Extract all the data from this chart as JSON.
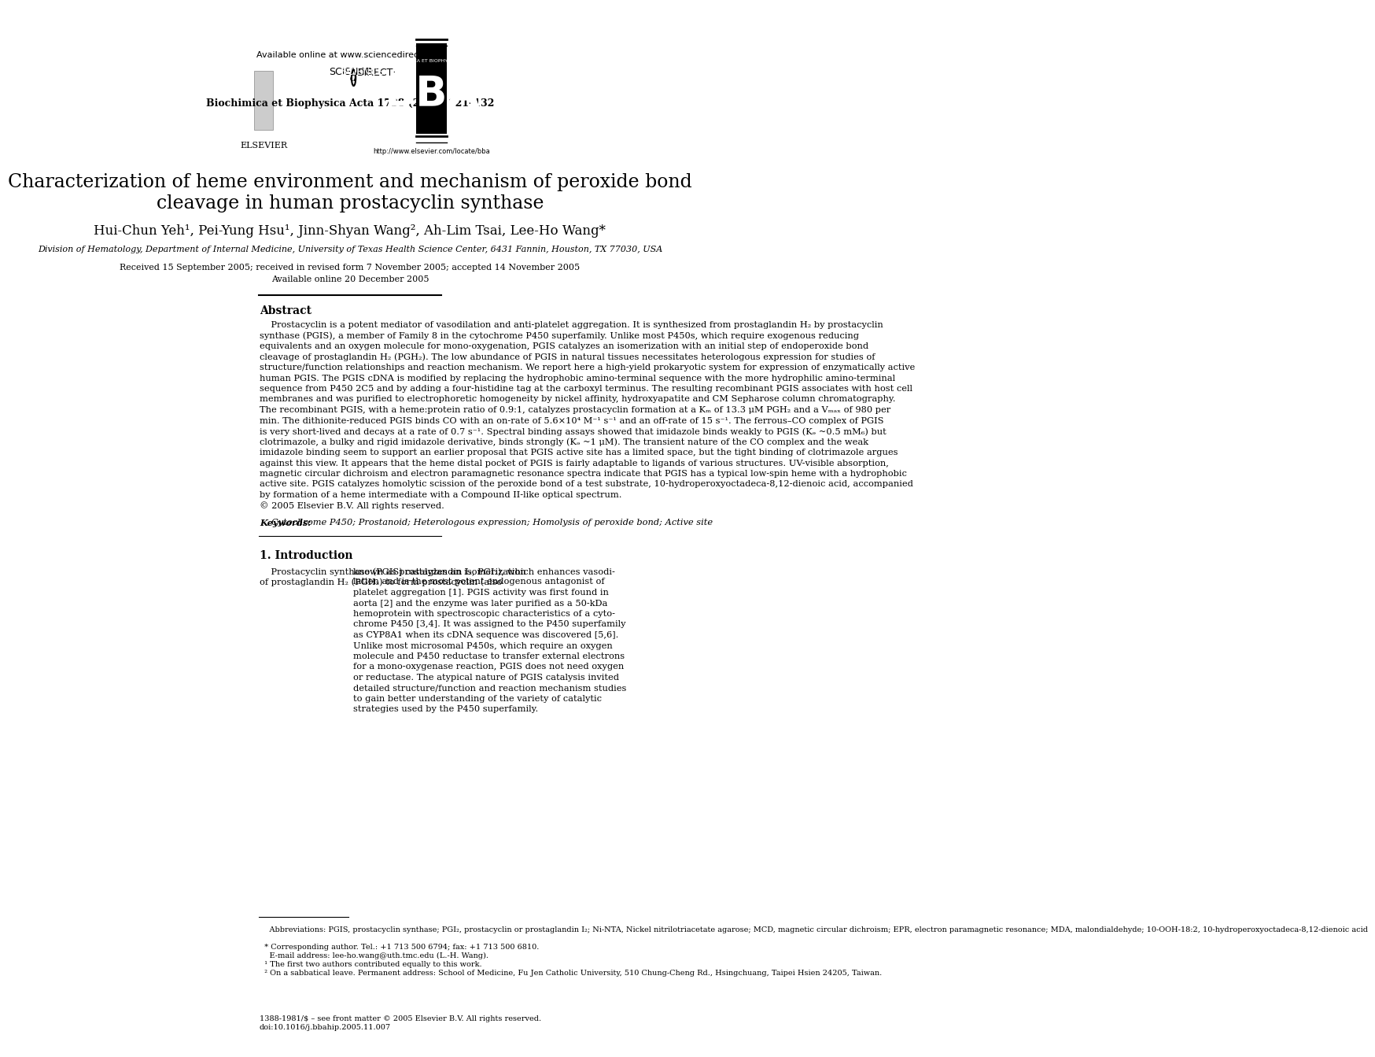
{
  "bg_color": "#ffffff",
  "header_line1": "Available online at www.sciencedirect.com",
  "journal_line": "Biochimica et Biophysica Acta 1738 (2005) 121–132",
  "paper_title_line1": "Characterization of heme environment and mechanism of peroxide bond",
  "paper_title_line2": "cleavage in human prostacyclin synthase",
  "authors": "Hui-Chun Yeh¹, Pei-Yung Hsu¹, Jinn-Shyan Wang², Ah-Lim Tsai, Lee-Ho Wang*",
  "affiliation": "Division of Hematology, Department of Internal Medicine, University of Texas Health Science Center, 6431 Fannin, Houston, TX 77030, USA",
  "received": "Received 15 September 2005; received in revised form 7 November 2005; accepted 14 November 2005",
  "available": "Available online 20 December 2005",
  "abstract_label": "Abstract",
  "abstract_text": "    Prostacyclin is a potent mediator of vasodilation and anti-platelet aggregation. It is synthesized from prostaglandin H₂ by prostacyclin synthase (PGIS), a member of Family 8 in the cytochrome P450 superfamily. Unlike most P450s, which require exogenous reducing equivalents and an oxygen molecule for mono-oxygenation, PGIS catalyzes an isomerization with an initial step of endoperoxide bond cleavage of prostaglandin H₂ (PGH₂). The low abundance of PGIS in natural tissues necessitates heterologous expression for studies of structure/function relationships and reaction mechanism. We report here a high-yield prokaryotic system for expression of enzymatically active human PGIS. The PGIS cDNA is modified by replacing the hydrophobic amino-terminal sequence with the more hydrophilic amino-terminal sequence from P450 2C5 and by adding a four-histidine tag at the carboxyl terminus. The resulting recombinant PGIS associates with host cell membranes and was purified to electrophoretic homogeneity by nickel affinity, hydroxyapatite and CM Sepharose column chromatography. The recombinant PGIS, with a heme:protein ratio of 0.9:1, catalyzes prostacyclin formation at a Kₘ of 13.3 μM PGH₂ and a Vₘₐₓ of 980 per min. The dithionite-reduced PGIS binds CO with an on-rate of 5.6×10⁴ M⁻¹ s⁻¹ and an off-rate of 15 s⁻¹. The ferrous–CO complex of PGIS is very short-lived and decays at a rate of 0.7 s⁻¹. Spectral binding assays showed that imidazole binds weakly to PGIS (Kₔ ~0.5 mM₆) but clotrimazole, a bulky and rigid imidazole derivative, binds strongly (Kₔ ~1 μM). The transient nature of the CO complex and the weak imidazole binding seem to support an earlier proposal that PGIS active site has a limited space, but the tight binding of clotrimazole argues against this view. It appears that the heme distal pocket of PGIS is fairly adaptable to ligands of various structures. UV-visible absorption, magnetic circular dichroism and electron paramagnetic resonance spectra indicate that PGIS has a typical low-spin heme with a hydrophobic active site. PGIS catalyzes homolytic scission of the peroxide bond of a test substrate, 10-hydroperoxyoctadeca-8,12-dienoic acid, accompanied by formation of a heme intermediate with a Compound II-like optical spectrum.\n© 2005 Elsevier B.V. All rights reserved.",
  "keywords_label": "Keywords:",
  "keywords_text": "Cytochrome P450; Prostanoid; Heterologous expression; Homolysis of peroxide bond; Active site",
  "section_label": "1. Introduction",
  "intro_col1": "    Prostacyclin synthase (PGIS) catalyzes an isomerization of prostaglandin H₂ (PGH₂) to form prostacyclin (also",
  "intro_col2": "known as prostaglandin I₂, PGI₂), which enhances vasodilation and is the most potent endogenous antagonist of platelet aggregation [1]. PGIS activity was first found in aorta [2] and the enzyme was later purified as a 50-kDa hemoprotein with spectroscopic characteristics of a cytochrome P450 [3,4]. It was assigned to the P450 superfamily as CYP8A1 when its cDNA sequence was discovered [5,6]. Unlike most microsomal P450s, which require an oxygen molecule and P450 reductase to transfer external electrons for a mono-oxygenase reaction, PGIS does not need oxygen or reductase. The atypical nature of PGIS catalysis invited detailed structure/function and reaction mechanism studies to gain better understanding of the variety of catalytic strategies used by the P450 superfamily.",
  "footnote_abbrev": "    Abbreviations: PGIS, prostacyclin synthase; PGI₂, prostacyclin or prostaglandin I₂; Ni-NTA, Nickel nitrilotriacetate agarose; MCD, magnetic circular dichroism; EPR, electron paramagnetic resonance; MDA, malondialdehyde; 10-OOH-18:2, 10-hydroperoxyoctadeca-8,12-dienoic acid",
  "footnote_corresp": "  * Corresponding author. Tel.: +1 713 500 6794; fax: +1 713 500 6810.",
  "footnote_email": "    E-mail address: lee-ho.wang@uth.tmc.edu (L.-H. Wang).",
  "footnote_1": "  ¹ The first two authors contributed equally to this work.",
  "footnote_2": "  ² On a sabbatical leave. Permanent address: School of Medicine, Fu Jen Catholic University, 510 Chung-Cheng Rd., Hsingchuang, Taipei Hsien 24205, Taiwan.",
  "issn_line": "1388-1981/$ – see front matter © 2005 Elsevier B.V. All rights reserved.",
  "doi_line": "doi:10.1016/j.bbahip.2005.11.007",
  "elsevier_text": "ELSEVIER",
  "sciencedirect_text": "SCIENCE    DIRECT·",
  "bba_text": "BBA",
  "bba_journal": "BIOCHIMICA ET BIOPHYSICA ACTA",
  "bba_url": "http://www.elsevier.com/locate/bba"
}
